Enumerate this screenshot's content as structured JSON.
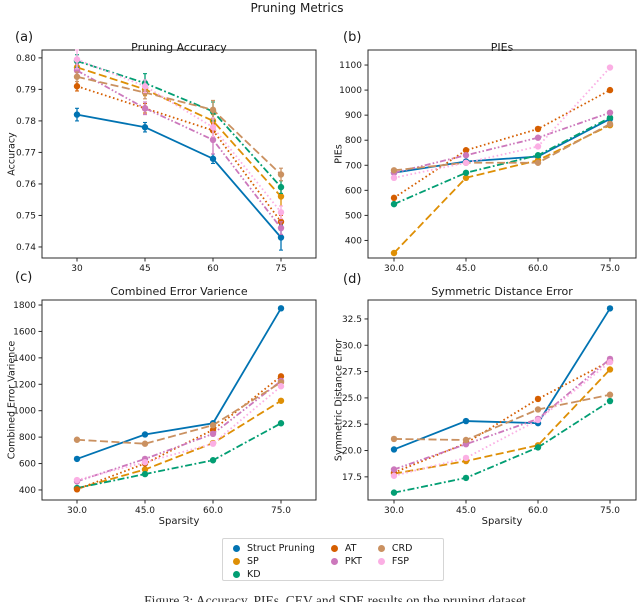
{
  "figure": {
    "suptitle": "Pruning Metrics",
    "panel_labels": [
      "(a)",
      "(b)",
      "(c)",
      "(d)"
    ],
    "caption": "Figure 3: Accuracy, PIEs, CEV and SDE results on the pruning dataset"
  },
  "legend": {
    "entries": [
      {
        "label": "Struct Pruning",
        "color": "#0173b2"
      },
      {
        "label": "SP",
        "color": "#de8f05"
      },
      {
        "label": "KD",
        "color": "#029e73"
      },
      {
        "label": "AT",
        "color": "#d55e00"
      },
      {
        "label": "PKT",
        "color": "#cc78bc"
      },
      {
        "label": "CRD",
        "color": "#ca9161"
      },
      {
        "label": "FSP",
        "color": "#fbafe4"
      }
    ]
  },
  "chart_data": [
    {
      "id": "a",
      "type": "line",
      "title": "Pruning Accuracy",
      "xlabel": "",
      "ylabel": "Accuracy",
      "x": [
        30,
        45,
        60,
        75
      ],
      "xticklabels": [
        "30",
        "45",
        "60",
        "75"
      ],
      "yticks": [
        0.74,
        0.75,
        0.76,
        0.77,
        0.78,
        0.79,
        0.8
      ],
      "yticklabels": [
        "0.74",
        "0.75",
        "0.76",
        "0.77",
        "0.78",
        "0.79",
        "0.80"
      ],
      "ylim": [
        0.7365,
        0.8025
      ],
      "grid": false,
      "legend_position": "below-figure",
      "series": [
        {
          "name": "Struct Pruning",
          "color": "#0173b2",
          "dash": "solid",
          "values": [
            0.782,
            0.778,
            0.768,
            0.743
          ],
          "yerr": [
            0.002,
            0.0015,
            0.0015,
            0.004
          ]
        },
        {
          "name": "SP",
          "color": "#de8f05",
          "dash": "dashed",
          "values": [
            0.797,
            0.79,
            0.78,
            0.756
          ],
          "yerr": [
            0.0015,
            0.002,
            0.002,
            0.003
          ]
        },
        {
          "name": "KD",
          "color": "#029e73",
          "dash": "dashdot",
          "values": [
            0.799,
            0.792,
            0.783,
            0.759
          ],
          "yerr": [
            0.002,
            0.003,
            0.003,
            0.002
          ]
        },
        {
          "name": "AT",
          "color": "#d55e00",
          "dash": "dotted",
          "values": [
            0.791,
            0.784,
            0.777,
            0.748
          ],
          "yerr": [
            0.0015,
            0.0015,
            0.002,
            0.002
          ]
        },
        {
          "name": "PKT",
          "color": "#cc78bc",
          "dash": "dashdotdot",
          "values": [
            0.796,
            0.784,
            0.774,
            0.746
          ],
          "yerr": [
            0.002,
            0.002,
            0.0045,
            0.002
          ]
        },
        {
          "name": "CRD",
          "color": "#ca9161",
          "dash": "dashed",
          "values": [
            0.794,
            0.789,
            0.7835,
            0.763
          ],
          "yerr": [
            0.0015,
            0.002,
            0.003,
            0.002
          ]
        },
        {
          "name": "FSP",
          "color": "#fbafe4",
          "dash": "dotted",
          "values": [
            0.7995,
            0.791,
            0.778,
            0.751
          ],
          "yerr": [
            0.003,
            0.002,
            0.003,
            0.002
          ]
        }
      ]
    },
    {
      "id": "b",
      "type": "line",
      "title": "PIEs",
      "xlabel": "",
      "ylabel": "PIEs",
      "x": [
        30,
        45,
        60,
        75
      ],
      "xticklabels": [
        "30.0",
        "45.0",
        "60.0",
        "75.0"
      ],
      "yticks": [
        400,
        500,
        600,
        700,
        800,
        900,
        1000,
        1100
      ],
      "yticklabels": [
        "400",
        "500",
        "600",
        "700",
        "800",
        "900",
        "1000",
        "1100"
      ],
      "ylim": [
        330,
        1160
      ],
      "grid": false,
      "series": [
        {
          "name": "Struct Pruning",
          "color": "#0173b2",
          "dash": "solid",
          "values": [
            670,
            715,
            735,
            885
          ]
        },
        {
          "name": "SP",
          "color": "#de8f05",
          "dash": "dashed",
          "values": [
            350,
            650,
            720,
            860
          ]
        },
        {
          "name": "KD",
          "color": "#029e73",
          "dash": "dashdot",
          "values": [
            545,
            670,
            740,
            890
          ]
        },
        {
          "name": "AT",
          "color": "#d55e00",
          "dash": "dotted",
          "values": [
            570,
            760,
            845,
            1000
          ]
        },
        {
          "name": "PKT",
          "color": "#cc78bc",
          "dash": "dashdotdot",
          "values": [
            670,
            740,
            810,
            910
          ]
        },
        {
          "name": "CRD",
          "color": "#ca9161",
          "dash": "dashed",
          "values": [
            680,
            710,
            710,
            865
          ]
        },
        {
          "name": "FSP",
          "color": "#fbafe4",
          "dash": "dotted",
          "values": [
            650,
            710,
            775,
            1090
          ]
        }
      ]
    },
    {
      "id": "c",
      "type": "line",
      "title": "Combined Error Varience",
      "xlabel": "Sparsity",
      "ylabel": "Combined Error Varience",
      "x": [
        30,
        45,
        60,
        75
      ],
      "xticklabels": [
        "30.0",
        "45.0",
        "60.0",
        "75.0"
      ],
      "yticks": [
        400,
        600,
        800,
        1000,
        1200,
        1400,
        1600,
        1800
      ],
      "yticklabels": [
        "400",
        "600",
        "800",
        "1000",
        "1200",
        "1400",
        "1600",
        "1800"
      ],
      "ylim": [
        324,
        1838
      ],
      "grid": false,
      "series": [
        {
          "name": "Struct Pruning",
          "color": "#0173b2",
          "dash": "solid",
          "values": [
            635,
            820,
            905,
            1775
          ]
        },
        {
          "name": "SP",
          "color": "#de8f05",
          "dash": "dashed",
          "values": [
            410,
            555,
            755,
            1075
          ]
        },
        {
          "name": "KD",
          "color": "#029e73",
          "dash": "dashdot",
          "values": [
            415,
            520,
            625,
            905
          ]
        },
        {
          "name": "AT",
          "color": "#d55e00",
          "dash": "dotted",
          "values": [
            405,
            600,
            855,
            1260
          ]
        },
        {
          "name": "PKT",
          "color": "#cc78bc",
          "dash": "dashdotdot",
          "values": [
            465,
            635,
            825,
            1225
          ]
        },
        {
          "name": "CRD",
          "color": "#ca9161",
          "dash": "dashed",
          "values": [
            780,
            750,
            890,
            1215
          ]
        },
        {
          "name": "FSP",
          "color": "#fbafe4",
          "dash": "dotted",
          "values": [
            475,
            610,
            750,
            1185
          ]
        }
      ]
    },
    {
      "id": "d",
      "type": "line",
      "title": "Symmetric Distance Error",
      "xlabel": "Sparsity",
      "ylabel": "Symmetric Distance Error",
      "x": [
        30,
        45,
        60,
        75
      ],
      "xticklabels": [
        "30.0",
        "45.0",
        "60.0",
        "75.0"
      ],
      "yticks": [
        17.5,
        20.0,
        22.5,
        25.0,
        27.5,
        30.0,
        32.5
      ],
      "yticklabels": [
        "17.5",
        "20.0",
        "22.5",
        "25.0",
        "27.5",
        "30.0",
        "32.5"
      ],
      "ylim": [
        15.3,
        34.3
      ],
      "grid": false,
      "series": [
        {
          "name": "Struct Pruning",
          "color": "#0173b2",
          "dash": "solid",
          "values": [
            20.1,
            22.8,
            22.6,
            33.5
          ]
        },
        {
          "name": "SP",
          "color": "#de8f05",
          "dash": "dashed",
          "values": [
            17.8,
            19.0,
            20.5,
            27.7
          ]
        },
        {
          "name": "KD",
          "color": "#029e73",
          "dash": "dashdot",
          "values": [
            16.0,
            17.4,
            20.3,
            24.7
          ]
        },
        {
          "name": "AT",
          "color": "#d55e00",
          "dash": "dotted",
          "values": [
            17.9,
            20.7,
            24.9,
            28.5
          ]
        },
        {
          "name": "PKT",
          "color": "#cc78bc",
          "dash": "dashdotdot",
          "values": [
            18.2,
            20.6,
            23.0,
            28.7
          ]
        },
        {
          "name": "CRD",
          "color": "#ca9161",
          "dash": "dashed",
          "values": [
            21.1,
            21.0,
            23.9,
            25.3
          ]
        },
        {
          "name": "FSP",
          "color": "#fbafe4",
          "dash": "dotted",
          "values": [
            17.6,
            19.3,
            22.9,
            28.4
          ]
        }
      ]
    }
  ]
}
